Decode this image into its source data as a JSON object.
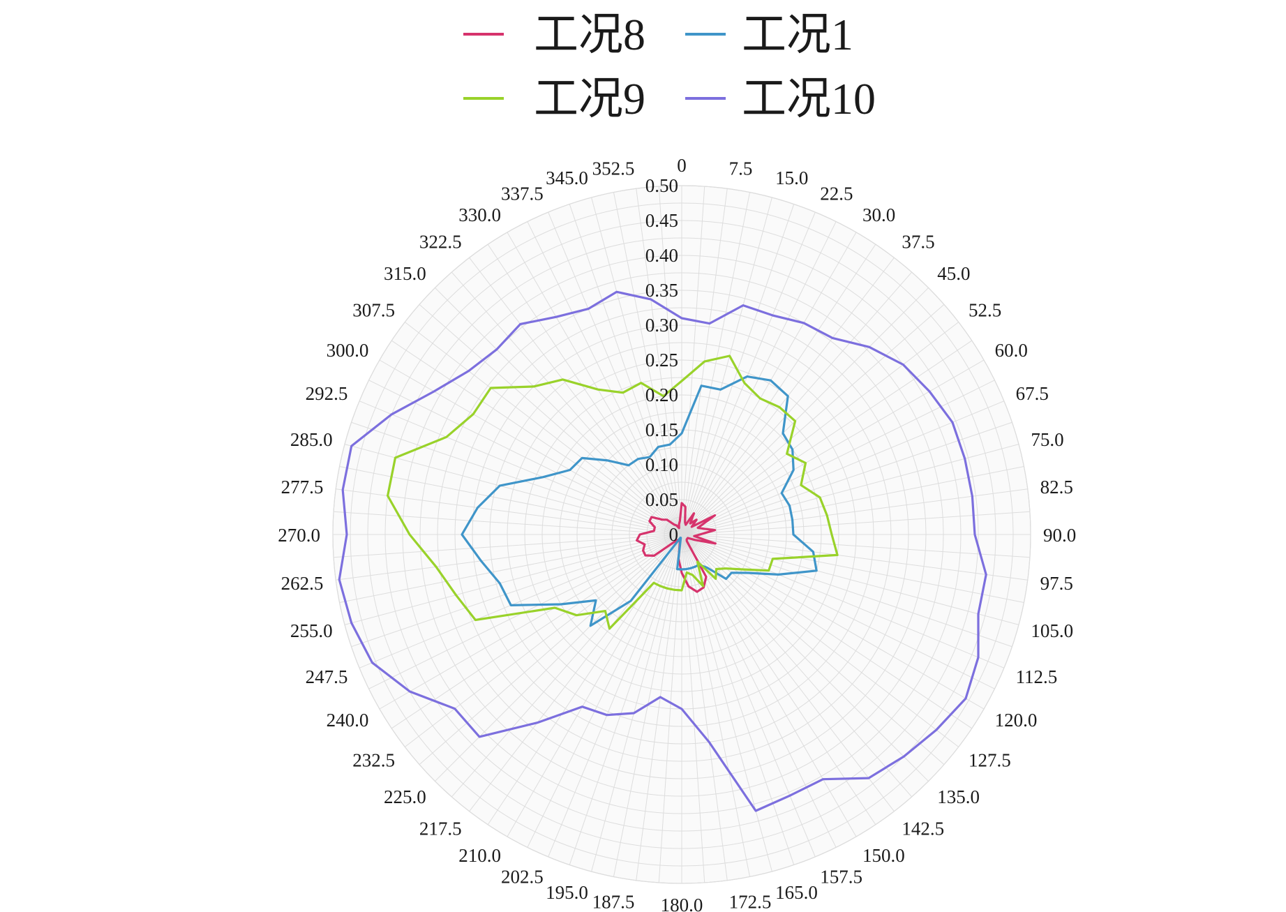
{
  "chart_data": {
    "type": "polar-line",
    "angular_unit": "deg",
    "angular_direction": "clockwise",
    "angular_zero": "top",
    "angular_tick_labels": [
      "0",
      "7.5",
      "15.0",
      "22.5",
      "30.0",
      "37.5",
      "45.0",
      "52.5",
      "60.0",
      "67.5",
      "75.0",
      "82.5",
      "90.0",
      "97.5",
      "105.0",
      "112.5",
      "120.0",
      "127.5",
      "135.0",
      "142.5",
      "150.0",
      "157.5",
      "165.0",
      "172.5",
      "180.0",
      "187.5",
      "195.0",
      "202.5",
      "210.0",
      "217.5",
      "225.0",
      "232.5",
      "240.0",
      "247.5",
      "255.0",
      "262.5",
      "270.0",
      "277.5",
      "285.0",
      "292.5",
      "300.0",
      "307.5",
      "315.0",
      "322.5",
      "330.0",
      "337.5",
      "345.0",
      "352.5"
    ],
    "radial_range": [
      0,
      0.5
    ],
    "radial_tick_labels": [
      "0",
      "0.05",
      "0.10",
      "0.15",
      "0.20",
      "0.25",
      "0.30",
      "0.35",
      "0.40",
      "0.45",
      "0.50"
    ],
    "radial_ticks": [
      0,
      0.05,
      0.1,
      0.15,
      0.2,
      0.25,
      0.3,
      0.35,
      0.4,
      0.45,
      0.5
    ],
    "radial_minor_step": 0.025,
    "grid": true,
    "legend_position": "top",
    "series": [
      {
        "name": "工况8",
        "color": "#d6336c",
        "theta": [
          0,
          7.5,
          15,
          22.5,
          30,
          37.5,
          45,
          52.5,
          60,
          67.5,
          75,
          82.5,
          90,
          97.5,
          105,
          112.5,
          120,
          127.5,
          135,
          142.5,
          150,
          157.5,
          165,
          172.5,
          180,
          187.5,
          195,
          202.5,
          210,
          217.5,
          225,
          232.5,
          240,
          247.5,
          255,
          262.5,
          270,
          277.5,
          285,
          292.5,
          300,
          307.5,
          315,
          322.5,
          330,
          337.5,
          345,
          352.5
        ],
        "r": [
          0.045,
          0.04,
          0.018,
          0.015,
          0.035,
          0.02,
          0.03,
          0.018,
          0.055,
          0.025,
          0.032,
          0.048,
          0.026,
          0.018,
          0.05,
          0.02,
          0.01,
          0.01,
          0.01,
          0.012,
          0.07,
          0.082,
          0.085,
          0.075,
          0.055,
          0.035,
          0.01,
          0.01,
          0.01,
          0.01,
          0.015,
          0.05,
          0.06,
          0.06,
          0.055,
          0.065,
          0.06,
          0.04,
          0.04,
          0.05,
          0.05,
          0.035,
          0.03,
          0.018,
          0.015,
          0.01,
          0.015,
          0.02
        ]
      },
      {
        "name": "工况1",
        "color": "#3f95c9",
        "theta": [
          0,
          7.5,
          15,
          22.5,
          30,
          37.5,
          45,
          52.5,
          60,
          67.5,
          75,
          82.5,
          90,
          97.5,
          105,
          112.5,
          120,
          127.5,
          135,
          142.5,
          150,
          157.5,
          165,
          172.5,
          180,
          187.5,
          195,
          202.5,
          210,
          217.5,
          225,
          232.5,
          240,
          247.5,
          255,
          262.5,
          270,
          277.5,
          285,
          292.5,
          300,
          307.5,
          315,
          322.5,
          330,
          337.5,
          345,
          352.5
        ],
        "r": [
          0.145,
          0.215,
          0.215,
          0.245,
          0.255,
          0.25,
          0.205,
          0.2,
          0.185,
          0.155,
          0.16,
          0.16,
          0.16,
          0.19,
          0.2,
          0.15,
          0.11,
          0.09,
          0.09,
          0.06,
          0.05,
          0.05,
          0.05,
          0.05,
          0.05,
          0.05,
          0.005,
          0.005,
          0.01,
          0.12,
          0.185,
          0.155,
          0.2,
          0.265,
          0.27,
          0.29,
          0.315,
          0.295,
          0.27,
          0.215,
          0.185,
          0.18,
          0.15,
          0.125,
          0.125,
          0.12,
          0.13,
          0.13
        ]
      },
      {
        "name": "工况9",
        "color": "#99d22a",
        "theta": [
          0,
          7.5,
          15,
          22.5,
          30,
          37.5,
          45,
          52.5,
          60,
          67.5,
          75,
          82.5,
          90,
          97.5,
          105,
          112.5,
          120,
          127.5,
          135,
          142.5,
          150,
          157.5,
          165,
          172.5,
          180,
          187.5,
          195,
          202.5,
          210,
          217.5,
          225,
          232.5,
          240,
          247.5,
          255,
          262.5,
          270,
          277.5,
          285,
          292.5,
          300,
          307.5,
          315,
          322.5,
          330,
          337.5,
          345,
          352.5
        ],
        "r": [
          0.22,
          0.25,
          0.265,
          0.235,
          0.225,
          0.23,
          0.23,
          0.19,
          0.205,
          0.185,
          0.205,
          0.21,
          0.215,
          0.225,
          0.135,
          0.135,
          0.1,
          0.08,
          0.07,
          0.08,
          0.045,
          0.08,
          0.06,
          0.055,
          0.08,
          0.08,
          0.08,
          0.08,
          0.08,
          0.17,
          0.155,
          0.19,
          0.21,
          0.32,
          0.335,
          0.355,
          0.39,
          0.425,
          0.425,
          0.365,
          0.345,
          0.345,
          0.3,
          0.28,
          0.24,
          0.22,
          0.225,
          0.2
        ]
      },
      {
        "name": "工况10",
        "color": "#7c6fde",
        "theta": [
          0,
          7.5,
          15,
          22.5,
          30,
          37.5,
          45,
          52.5,
          60,
          67.5,
          75,
          82.5,
          90,
          97.5,
          105,
          112.5,
          120,
          127.5,
          135,
          142.5,
          150,
          157.5,
          165,
          172.5,
          180,
          187.5,
          195,
          202.5,
          210,
          217.5,
          225,
          232.5,
          240,
          247.5,
          255,
          262.5,
          270,
          277.5,
          285,
          292.5,
          300,
          307.5,
          315,
          322.5,
          330,
          337.5,
          345,
          352.5
        ],
        "r": [
          0.31,
          0.305,
          0.34,
          0.34,
          0.35,
          0.355,
          0.38,
          0.4,
          0.41,
          0.42,
          0.42,
          0.42,
          0.42,
          0.44,
          0.44,
          0.46,
          0.47,
          0.46,
          0.45,
          0.44,
          0.405,
          0.405,
          0.41,
          0.3,
          0.25,
          0.235,
          0.265,
          0.28,
          0.285,
          0.34,
          0.41,
          0.41,
          0.45,
          0.48,
          0.49,
          0.495,
          0.48,
          0.49,
          0.49,
          0.45,
          0.41,
          0.385,
          0.375,
          0.38,
          0.36,
          0.35,
          0.36,
          0.34
        ]
      }
    ]
  }
}
